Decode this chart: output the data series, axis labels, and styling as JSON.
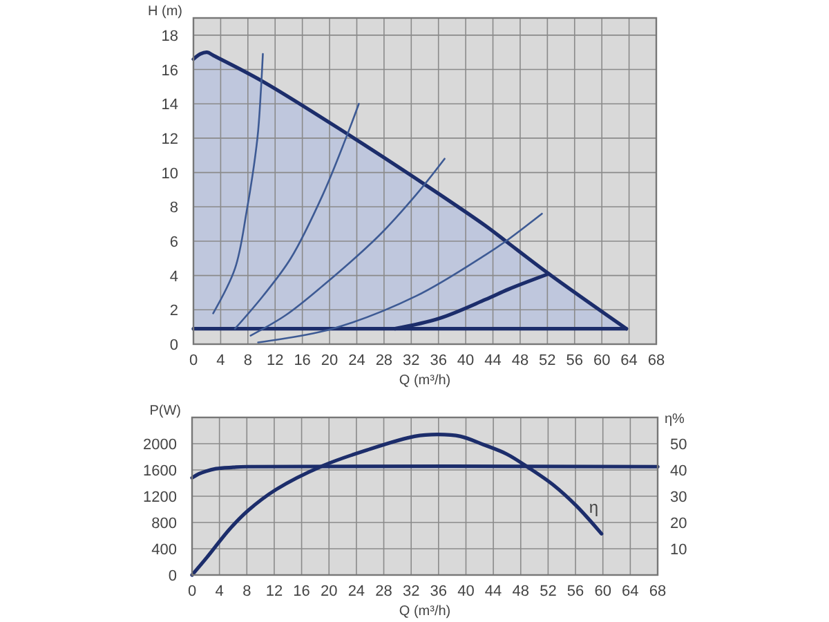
{
  "chart_data": [
    {
      "type": "line",
      "xlabel": "Q (m³/h)",
      "ylabel": "H (m)",
      "xlim": [
        0,
        68
      ],
      "xticks": [
        0,
        4,
        8,
        12,
        16,
        20,
        24,
        28,
        32,
        36,
        40,
        44,
        48,
        52,
        56,
        60,
        64,
        68
      ],
      "ylim": [
        0,
        19
      ],
      "yticks": [
        0,
        2,
        4,
        6,
        8,
        10,
        12,
        14,
        16,
        18
      ],
      "grid": true,
      "series": [
        {
          "color": "#1c2d6b",
          "x": [
            0,
            1,
            2,
            3,
            10.2,
            22.8,
            34,
            42.9,
            45.9,
            52.2,
            63.6
          ],
          "values": [
            16.6,
            16.9,
            17,
            16.8,
            15.3,
            12.2,
            9.3,
            6.9,
            6,
            4.1,
            0.9
          ],
          "lower": [
            0.9,
            0.9,
            0.9,
            0.9,
            0.9,
            0.9,
            0.9,
            0.9,
            0.9,
            0.9,
            0.9
          ],
          "upper": [
            16.6,
            16.9,
            17,
            16.8,
            15.3,
            12.2,
            9.3,
            6.9,
            6,
            4.1,
            0.9
          ]
        },
        {
          "color": "#1c2d6b",
          "x": [
            0,
            63.6
          ],
          "values": [
            0.9,
            0.9
          ]
        },
        {
          "color": "#3d5a94",
          "x": [
            2.9,
            6.1,
            7.8,
            9.4,
            9.9,
            10.2
          ],
          "values": [
            1.8,
            4.4,
            7.7,
            12,
            14.7,
            16.9
          ]
        },
        {
          "color": "#3d5a94",
          "x": [
            6.1,
            10.2,
            14.3,
            19,
            22.4,
            24.3
          ],
          "values": [
            0.9,
            2.8,
            5,
            8.7,
            12,
            14
          ]
        },
        {
          "color": "#3d5a94",
          "x": [
            8.4,
            13.6,
            19,
            27.2,
            32.7,
            36.9
          ],
          "values": [
            0.5,
            1.7,
            3.4,
            6.3,
            8.7,
            10.8
          ]
        },
        {
          "color": "#3d5a94",
          "x": [
            9.5,
            20.4,
            32.7,
            42.9,
            45.9,
            51.2
          ],
          "values": [
            0.1,
            0.9,
            2.8,
            5.2,
            6,
            7.6
          ]
        },
        {
          "color": "#1c2d6b",
          "x": [
            29.6,
            36.1,
            42.9,
            46.3,
            52.2
          ],
          "values": [
            0.9,
            1.5,
            2.6,
            3.2,
            4.1
          ]
        }
      ]
    },
    {
      "type": "line",
      "xlabel": "Q (m³/h)",
      "ylabel": "P(W)",
      "y2label": "η%",
      "xlim": [
        0,
        68
      ],
      "xticks": [
        0,
        4,
        8,
        12,
        16,
        20,
        24,
        28,
        32,
        36,
        40,
        44,
        48,
        52,
        56,
        60,
        64,
        68
      ],
      "ylim": [
        0,
        2400
      ],
      "yticks": [
        0,
        400,
        800,
        1200,
        1600,
        2000
      ],
      "y2lim": [
        0,
        60
      ],
      "y2ticks": [
        10,
        20,
        30,
        40,
        50
      ],
      "grid": true,
      "series": [
        {
          "color": "#1c2d6b",
          "x": [
            0,
            1,
            2,
            3.5,
            6,
            8,
            68
          ],
          "values": [
            1480,
            1540,
            1580,
            1620,
            1640,
            1650,
            1650
          ]
        },
        {
          "name": "η",
          "axis": "y2",
          "color": "#1c2d6b",
          "x": [
            0,
            2.2,
            5.5,
            8.2,
            12.3,
            19,
            25.8,
            32.5,
            35.9,
            39.2,
            42.6,
            46,
            49.3,
            52.7,
            56.1,
            59.8
          ],
          "values": [
            0,
            6.8,
            17.5,
            24.6,
            32.6,
            41.5,
            47.8,
            52.8,
            53.5,
            52.8,
            49.6,
            46,
            40.6,
            34.4,
            26.4,
            15.7
          ]
        }
      ]
    }
  ]
}
